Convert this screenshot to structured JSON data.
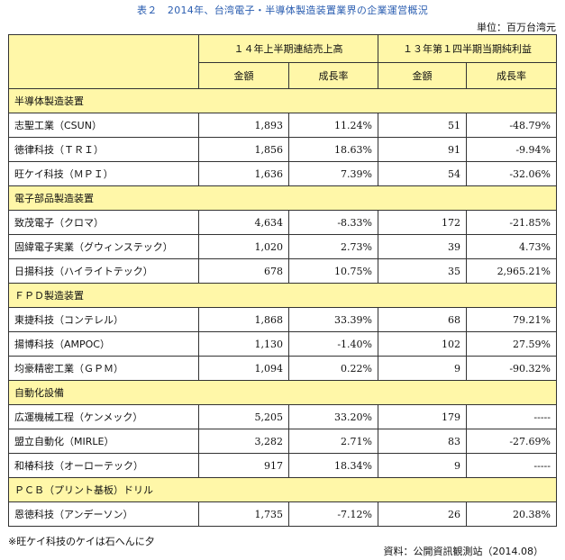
{
  "title": "表２　2014年、台湾電子・半導体製造装置業界の企業運営概況",
  "unit": "単位：百万台湾元",
  "headers": {
    "group1": "１４年上半期連結売上高",
    "group2": "１３年第１四半期当期純利益",
    "amount": "金額",
    "growth": "成長率"
  },
  "sections": [
    {
      "name": "半導体製造装置",
      "rows": [
        {
          "company": "志聖工業（CSUN）",
          "sales": "1,893",
          "sales_growth": "11.24%",
          "profit": "51",
          "profit_growth": "-48.79%"
        },
        {
          "company": "徳律科技（ＴＲＩ）",
          "sales": "1,856",
          "sales_growth": "18.63%",
          "profit": "91",
          "profit_growth": "-9.94%"
        },
        {
          "company": "旺ケイ科技（ＭＰＩ）",
          "sales": "1,636",
          "sales_growth": "7.39%",
          "profit": "54",
          "profit_growth": "-32.06%"
        }
      ]
    },
    {
      "name": "電子部品製造装置",
      "rows": [
        {
          "company": "致茂電子（クロマ）",
          "sales": "4,634",
          "sales_growth": "-8.33%",
          "profit": "172",
          "profit_growth": "-21.85%"
        },
        {
          "company": "固緯電子実業（グウィンステック）",
          "sales": "1,020",
          "sales_growth": "2.73%",
          "profit": "39",
          "profit_growth": "4.73%"
        },
        {
          "company": "日揚科技（ハイライトテック）",
          "sales": "678",
          "sales_growth": "10.75%",
          "profit": "35",
          "profit_growth": "2,965.21%"
        }
      ]
    },
    {
      "name": "ＦＰＤ製造装置",
      "rows": [
        {
          "company": "東捷科技（コンテレル）",
          "sales": "1,868",
          "sales_growth": "33.39%",
          "profit": "68",
          "profit_growth": "79.21%"
        },
        {
          "company": "揚博科技（AMPOC）",
          "sales": "1,130",
          "sales_growth": "-1.40%",
          "profit": "102",
          "profit_growth": "27.59%"
        },
        {
          "company": "均豪精密工業（ＧＰＭ）",
          "sales": "1,094",
          "sales_growth": "0.22%",
          "profit": "9",
          "profit_growth": "-90.32%"
        }
      ]
    },
    {
      "name": "自動化設備",
      "rows": [
        {
          "company": "広運機械工程（ケンメック）",
          "sales": "5,205",
          "sales_growth": "33.20%",
          "profit": "179",
          "profit_growth": "-----"
        },
        {
          "company": "盟立自動化（MIRLE）",
          "sales": "3,282",
          "sales_growth": "2.71%",
          "profit": "83",
          "profit_growth": "-27.69%"
        },
        {
          "company": "和椿科技（オーローテック）",
          "sales": "917",
          "sales_growth": "18.34%",
          "profit": "9",
          "profit_growth": "-----"
        }
      ]
    },
    {
      "name": "ＰＣＢ（プリント基板）ドリル",
      "rows": [
        {
          "company": "恩徳科技（アンデーソン）",
          "sales": "1,735",
          "sales_growth": "-7.12%",
          "profit": "26",
          "profit_growth": "20.38%"
        }
      ]
    }
  ],
  "footnote": "※旺ケイ科技のケイは石へんに夕",
  "source": "資料：公開資訊観測站（2014.08）"
}
